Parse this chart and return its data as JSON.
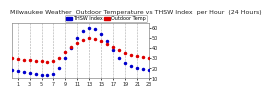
{
  "title": "Milwaukee Weather  Outdoor Temperature vs THSW Index  per Hour  (24 Hours)",
  "background_color": "#ffffff",
  "plot_bg_color": "#ffffff",
  "grid_color": "#aaaaaa",
  "hours": [
    0,
    1,
    2,
    3,
    4,
    5,
    6,
    7,
    8,
    9,
    10,
    11,
    12,
    13,
    14,
    15,
    16,
    17,
    18,
    19,
    20,
    21,
    22,
    23
  ],
  "outdoor_temp": [
    30,
    29,
    28,
    28,
    27,
    27,
    26,
    27,
    30,
    36,
    41,
    45,
    48,
    50,
    49,
    47,
    44,
    41,
    38,
    35,
    33,
    32,
    31,
    30
  ],
  "thsw_index": [
    18,
    17,
    16,
    15,
    14,
    13,
    13,
    14,
    20,
    30,
    40,
    50,
    57,
    60,
    59,
    54,
    47,
    38,
    30,
    25,
    22,
    20,
    19,
    18
  ],
  "temp_color": "#dd0000",
  "thsw_color": "#0000cc",
  "legend_temp_label": "Outdoor Temp",
  "legend_thsw_label": "THSW Index",
  "ylim_min": 10,
  "ylim_max": 65,
  "yticks": [
    10,
    20,
    30,
    40,
    50,
    60
  ],
  "xticks": [
    1,
    3,
    5,
    7,
    9,
    11,
    13,
    15,
    17,
    19,
    21,
    23
  ],
  "title_fontsize": 4.5,
  "tick_fontsize": 3.5,
  "legend_fontsize": 3.5,
  "marker_size": 1.5,
  "grid_lw": 0.4,
  "spine_lw": 0.5
}
